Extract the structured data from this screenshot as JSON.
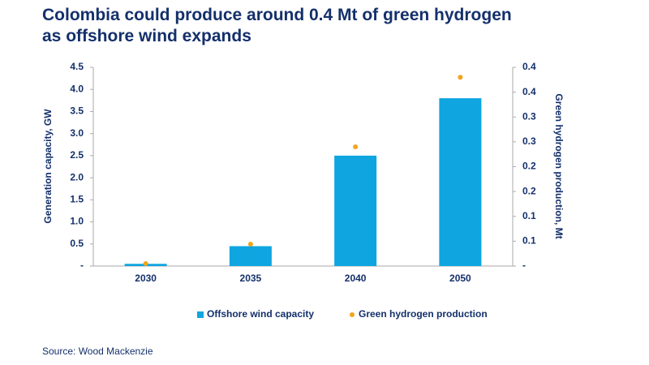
{
  "chart_data": {
    "type": "bar",
    "title": "Colombia could produce around 0.4 Mt of green hydrogen as offshore wind expands",
    "source": "Source: Wood Mackenzie",
    "y_label": "Generation capacity, GW",
    "y2_label": "Green hydrogen production, Mt",
    "categories": [
      "2030",
      "2035",
      "2040",
      "2050"
    ],
    "series": [
      {
        "name": "Offshore wind capacity",
        "type": "bar",
        "color": "#0ea5e0",
        "values": [
          0.05,
          0.45,
          2.5,
          3.8
        ]
      },
      {
        "name": "Green hydrogen production",
        "type": "scatter",
        "axis": "y2",
        "color": "#f2a51c",
        "values": [
          0.005,
          0.044,
          0.24,
          0.38
        ]
      }
    ],
    "ylim": [
      0,
      4.5
    ],
    "yticks": [
      {
        "value": 0,
        "label": "-"
      },
      0.5,
      {
        "value": 1,
        "label": "1.0"
      },
      1.5,
      {
        "value": 2,
        "label": "2.0"
      },
      2.5,
      {
        "value": 3,
        "label": "3.0"
      },
      3.5,
      {
        "value": 4,
        "label": "4.0"
      },
      4.5
    ],
    "y2lim": [
      0,
      0.4
    ],
    "y2ticks": [
      {
        "value": 0,
        "label": "-"
      },
      {
        "value": 0.05,
        "label": "0.1"
      },
      {
        "value": 0.1,
        "label": "0.1"
      },
      {
        "value": 0.15,
        "label": "0.2"
      },
      {
        "value": 0.2,
        "label": "0.2"
      },
      {
        "value": 0.25,
        "label": "0.3"
      },
      {
        "value": 0.3,
        "label": "0.3"
      },
      {
        "value": 0.35,
        "label": "0.4"
      },
      {
        "value": 0.4,
        "label": "0.4"
      }
    ],
    "legend": "bottom"
  }
}
